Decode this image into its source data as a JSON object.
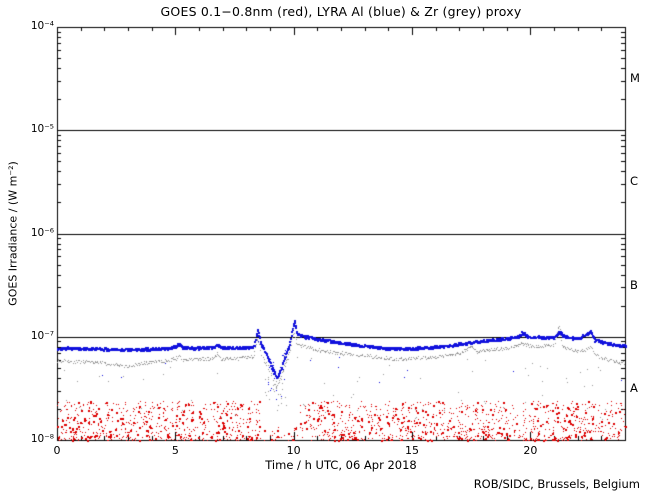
{
  "page": {
    "credit": "ROB/SIDC, Brussels, Belgium",
    "background": "#ffffff",
    "axis_color": "#000000"
  },
  "chart_data": {
    "type": "scatter",
    "title": "GOES 0.1−0.8nm (red), LYRA Al (blue) & Zr (grey) proxy",
    "xlabel": "Time / h UTC, 06 Apr 2018",
    "ylabel": "GOES Irradiance / (W m⁻²)",
    "grid": false,
    "x_range": [
      0,
      24
    ],
    "x_minor_step": 1,
    "x_major_ticks": [
      {
        "label": "0",
        "hour": 0
      },
      {
        "label": "5",
        "hour": 5
      },
      {
        "label": "10",
        "hour": 10
      },
      {
        "label": "15",
        "hour": 15
      },
      {
        "label": "20",
        "hour": 20
      }
    ],
    "y_log_range": [
      -8,
      -4
    ],
    "y_ticks": [
      {
        "label": "10⁻⁴",
        "flux": 0.0001
      },
      {
        "label": "10⁻⁵",
        "flux": 1e-05
      },
      {
        "label": "10⁻⁶",
        "flux": 1e-06
      },
      {
        "label": "10⁻⁷",
        "flux": 1e-07
      },
      {
        "label": "10⁻⁸",
        "flux": 1e-08
      }
    ],
    "class_boundary_lines_flux": [
      1e-05,
      1e-06,
      1e-07
    ],
    "flare_classes": [
      {
        "label": "M",
        "center_flux": 3.2e-05
      },
      {
        "label": "C",
        "center_flux": 3.2e-06
      },
      {
        "label": "B",
        "center_flux": 3.2e-07
      },
      {
        "label": "A",
        "center_flux": 3.2e-08
      }
    ],
    "series": [
      {
        "name": "GOES 0.1-0.8nm X-ray flux",
        "color": "#dd0000",
        "style": "noise-scatter",
        "segments": [
          {
            "x0": 0.0,
            "x1": 8.55,
            "n": 650,
            "fmin": 1e-08,
            "fmax": 2.4e-08,
            "bias": 1.35
          },
          {
            "x0": 8.55,
            "x1": 10.25,
            "n": 30,
            "fmin": 1e-08,
            "fmax": 1.35e-08,
            "bias": 1.6
          },
          {
            "x0": 10.25,
            "x1": 24.0,
            "n": 1000,
            "fmin": 1e-08,
            "fmax": 2.4e-08,
            "bias": 1.35
          }
        ]
      },
      {
        "name": "LYRA Al proxy",
        "color": "#1010dd",
        "style": "dotted-line",
        "dot_size": 2,
        "dt": 0.02,
        "jitter_log": 0.012,
        "gap_prob": 0.05,
        "points": [
          [
            0,
            7.8e-08
          ],
          [
            0.5,
            7.85e-08
          ],
          [
            1,
            7.8e-08
          ],
          [
            1.5,
            7.75e-08
          ],
          [
            2,
            7.7e-08
          ],
          [
            2.5,
            7.65e-08
          ],
          [
            3,
            7.6e-08
          ],
          [
            3.5,
            7.65e-08
          ],
          [
            4,
            7.7e-08
          ],
          [
            4.6,
            7.8e-08
          ],
          [
            5.0,
            8.2e-08
          ],
          [
            5.15,
            8.6e-08
          ],
          [
            5.3,
            7.9e-08
          ],
          [
            6,
            7.85e-08
          ],
          [
            6.6,
            8e-08
          ],
          [
            6.75,
            8.5e-08
          ],
          [
            6.9,
            7.95e-08
          ],
          [
            7.5,
            7.9e-08
          ],
          [
            8.0,
            7.95e-08
          ],
          [
            8.3,
            8.2e-08
          ],
          [
            8.45,
            1.18e-07
          ],
          [
            8.6,
            8.6e-08
          ],
          [
            8.8,
            7e-08
          ],
          [
            9.0,
            5.5e-08
          ],
          [
            9.25,
            4e-08
          ],
          [
            9.45,
            5e-08
          ],
          [
            9.6,
            6.5e-08
          ],
          [
            9.8,
            8.5e-08
          ],
          [
            10.0,
            1.45e-07
          ],
          [
            10.1,
            1.1e-07
          ],
          [
            10.3,
            1.03e-07
          ],
          [
            10.6,
            1e-07
          ],
          [
            11,
            9.6e-08
          ],
          [
            11.5,
            9.2e-08
          ],
          [
            12,
            8.8e-08
          ],
          [
            12.5,
            8.5e-08
          ],
          [
            13,
            8.2e-08
          ],
          [
            13.5,
            8e-08
          ],
          [
            14,
            7.8e-08
          ],
          [
            14.5,
            7.75e-08
          ],
          [
            15,
            7.8e-08
          ],
          [
            15.5,
            7.9e-08
          ],
          [
            16,
            8.1e-08
          ],
          [
            16.5,
            8.3e-08
          ],
          [
            17,
            8.6e-08
          ],
          [
            17.5,
            8.9e-08
          ],
          [
            18,
            9.2e-08
          ],
          [
            18.5,
            9.5e-08
          ],
          [
            19,
            9.8e-08
          ],
          [
            19.5,
            1.02e-07
          ],
          [
            19.65,
            1.12e-07
          ],
          [
            19.8,
            1.03e-07
          ],
          [
            20,
            1.01e-07
          ],
          [
            20.5,
            1e-07
          ],
          [
            21,
            1e-07
          ],
          [
            21.2,
            1.13e-07
          ],
          [
            21.4,
            1.02e-07
          ],
          [
            21.7,
            9.9e-08
          ],
          [
            22,
            9.7e-08
          ],
          [
            22.55,
            1.14e-07
          ],
          [
            22.7,
            9.4e-08
          ],
          [
            23,
            9e-08
          ],
          [
            23.5,
            8.5e-08
          ],
          [
            24,
            8.2e-08
          ]
        ],
        "scatter_regions": [
          {
            "x0": 8.75,
            "x1": 9.7,
            "n": 28,
            "spread": 0.18
          }
        ],
        "outliers": {
          "n": 12,
          "max_log_drop": 0.3
        }
      },
      {
        "name": "LYRA Zr proxy",
        "color": "#999999",
        "style": "dotted-line",
        "dot_size": 1.4,
        "dt": 0.03,
        "jitter_log": 0.016,
        "gap_prob": 0.12,
        "points": [
          [
            0,
            5.9e-08
          ],
          [
            0.5,
            5.85e-08
          ],
          [
            1,
            5.8e-08
          ],
          [
            1.5,
            5.7e-08
          ],
          [
            2,
            5.6e-08
          ],
          [
            2.5,
            5.4e-08
          ],
          [
            2.9,
            5.2e-08
          ],
          [
            3.3,
            5.4e-08
          ],
          [
            4,
            5.7e-08
          ],
          [
            4.6,
            5.9e-08
          ],
          [
            5.0,
            6.2e-08
          ],
          [
            5.15,
            6.5e-08
          ],
          [
            5.3,
            6e-08
          ],
          [
            6,
            6.1e-08
          ],
          [
            6.6,
            6.3e-08
          ],
          [
            6.75,
            6.8e-08
          ],
          [
            6.9,
            6.2e-08
          ],
          [
            7.5,
            6.2e-08
          ],
          [
            8.0,
            6.3e-08
          ],
          [
            8.3,
            6.5e-08
          ],
          [
            8.45,
            9.8e-08
          ],
          [
            8.6,
            6.8e-08
          ],
          [
            8.8,
            5.6e-08
          ],
          [
            9.0,
            4.5e-08
          ],
          [
            9.25,
            3.2e-08
          ],
          [
            9.45,
            4e-08
          ],
          [
            9.6,
            5.2e-08
          ],
          [
            9.8,
            6.8e-08
          ],
          [
            10.0,
            1.2e-07
          ],
          [
            10.1,
            8.6e-08
          ],
          [
            10.3,
            8.2e-08
          ],
          [
            10.6,
            7.9e-08
          ],
          [
            11,
            7.5e-08
          ],
          [
            11.5,
            7.2e-08
          ],
          [
            12,
            7e-08
          ],
          [
            12.5,
            6.8e-08
          ],
          [
            13,
            6.6e-08
          ],
          [
            13.5,
            6.4e-08
          ],
          [
            14,
            6.2e-08
          ],
          [
            14.5,
            6.15e-08
          ],
          [
            15,
            6.2e-08
          ],
          [
            15.5,
            6.3e-08
          ],
          [
            16,
            6.5e-08
          ],
          [
            16.5,
            6.7e-08
          ],
          [
            17,
            7e-08
          ],
          [
            17.55,
            8.1e-08
          ],
          [
            17.7,
            7.2e-08
          ],
          [
            18,
            7.4e-08
          ],
          [
            18.5,
            7.6e-08
          ],
          [
            19,
            7.8e-08
          ],
          [
            19.5,
            8.3e-08
          ],
          [
            19.65,
            8.8e-08
          ],
          [
            19.8,
            8.4e-08
          ],
          [
            20,
            8.2e-08
          ],
          [
            20.5,
            8.1e-08
          ],
          [
            21,
            8.2e-08
          ],
          [
            21.2,
            1.32e-07
          ],
          [
            21.35,
            8e-08
          ],
          [
            21.7,
            7.6e-08
          ],
          [
            22,
            7.2e-08
          ],
          [
            22.55,
            7.9e-08
          ],
          [
            22.7,
            6.8e-08
          ],
          [
            23,
            6.3e-08
          ],
          [
            23.5,
            5.8e-08
          ],
          [
            24,
            5.6e-08
          ]
        ],
        "scatter_regions": [
          {
            "x0": 8.75,
            "x1": 9.7,
            "n": 24,
            "spread": 0.2
          }
        ],
        "outliers": {
          "n": 70,
          "max_log_drop": 0.55
        }
      }
    ]
  }
}
